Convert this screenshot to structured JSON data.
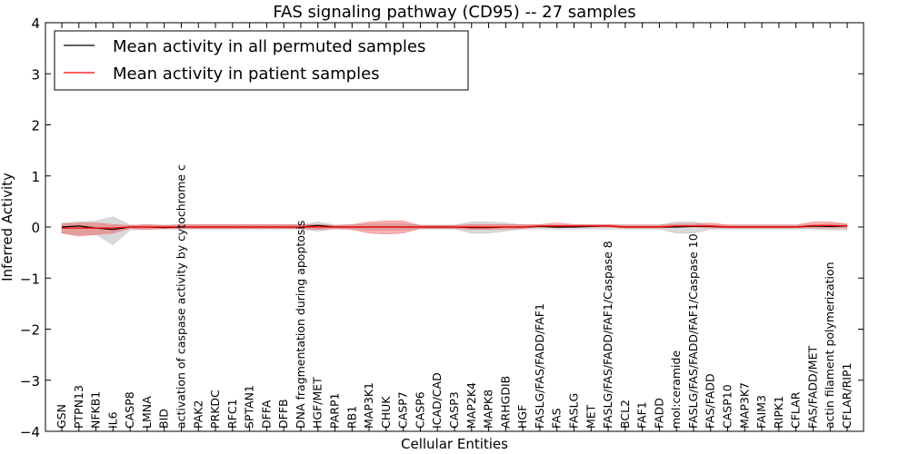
{
  "chart_data": {
    "type": "line",
    "title": "FAS signaling pathway (CD95) -- 27 samples",
    "xlabel": "Cellular Entities",
    "ylabel": "Inferred Activity",
    "ylim": [
      -4,
      4
    ],
    "yticks": [
      -4,
      -3,
      -2,
      -1,
      0,
      1,
      2,
      3,
      4
    ],
    "ytick_labels": [
      "−4",
      "−3",
      "−2",
      "−1",
      "0",
      "1",
      "2",
      "3",
      "4"
    ],
    "grid": false,
    "legend_position": "top-left",
    "categories": [
      "GSN",
      "PTPN13",
      "NFKB1",
      "IL6",
      "CASP8",
      "LMNA",
      "BID",
      "activation of caspase activity by cytochrome c",
      "PAK2",
      "PRKDC",
      "RFC1",
      "SPTAN1",
      "DFFA",
      "DFFB",
      "DNA fragmentation during apoptosis",
      "HGF/MET",
      "PARP1",
      "RB1",
      "MAP3K1",
      "CHUK",
      "CASP7",
      "CASP6",
      "ICAD/CAD",
      "CASP3",
      "MAP2K4",
      "MAPK8",
      "ARHGDIB",
      "HGF",
      "FASLG/FAS/FADD/FAF1",
      "FAS",
      "FASLG",
      "MET",
      "FASLG/FAS/FADD/FAF1/Caspase 8",
      "BCL2",
      "FAF1",
      "FADD",
      "mol:ceramide",
      "FASLG/FAS/FADD/FAF1/Caspase 10",
      "FAS/FADD",
      "CASP10",
      "MAP3K7",
      "FAIM3",
      "RIPK1",
      "CFLAR",
      "FAS/FADD/MET",
      "actin filament polymerization",
      "CFLAR/RIP1"
    ],
    "series": [
      {
        "name": "Mean activity in all permuted samples",
        "color": "#000000",
        "values": [
          0.0,
          0.02,
          -0.02,
          -0.05,
          0.0,
          0.0,
          -0.01,
          0.0,
          0.0,
          0.0,
          0.0,
          0.0,
          0.0,
          0.0,
          0.0,
          0.03,
          0.0,
          0.0,
          0.0,
          0.0,
          0.0,
          0.0,
          0.0,
          0.0,
          -0.01,
          -0.01,
          0.0,
          0.0,
          0.01,
          0.0,
          0.0,
          0.01,
          0.02,
          0.0,
          0.0,
          0.0,
          0.0,
          0.01,
          0.01,
          0.0,
          0.0,
          0.0,
          0.0,
          0.0,
          0.02,
          0.01,
          0.02
        ],
        "band_lower": [
          -0.12,
          -0.15,
          -0.15,
          -0.35,
          -0.06,
          -0.04,
          -0.04,
          -0.04,
          -0.04,
          -0.04,
          -0.04,
          -0.04,
          -0.04,
          -0.04,
          -0.04,
          -0.08,
          -0.04,
          -0.04,
          -0.06,
          -0.06,
          -0.06,
          -0.04,
          -0.04,
          -0.04,
          -0.12,
          -0.12,
          -0.08,
          -0.04,
          -0.04,
          -0.04,
          -0.04,
          -0.04,
          -0.04,
          -0.04,
          -0.04,
          -0.04,
          -0.12,
          -0.12,
          -0.04,
          -0.04,
          -0.04,
          -0.04,
          -0.04,
          -0.04,
          -0.04,
          -0.06,
          -0.06
        ],
        "band_upper": [
          0.08,
          0.1,
          0.12,
          0.2,
          0.04,
          0.04,
          0.04,
          0.04,
          0.04,
          0.04,
          0.04,
          0.04,
          0.04,
          0.04,
          0.04,
          0.1,
          0.04,
          0.04,
          0.06,
          0.06,
          0.06,
          0.04,
          0.04,
          0.04,
          0.1,
          0.1,
          0.08,
          0.04,
          0.04,
          0.04,
          0.04,
          0.04,
          0.04,
          0.04,
          0.04,
          0.04,
          0.1,
          0.1,
          0.04,
          0.04,
          0.04,
          0.04,
          0.04,
          0.04,
          0.04,
          0.06,
          0.06
        ]
      },
      {
        "name": "Mean activity in patient samples",
        "color": "#ff0000",
        "values": [
          -0.02,
          -0.02,
          -0.02,
          -0.02,
          0.0,
          0.0,
          0.0,
          0.0,
          0.0,
          0.0,
          0.0,
          0.0,
          0.0,
          0.0,
          0.0,
          0.0,
          0.0,
          0.0,
          0.0,
          0.0,
          0.0,
          0.0,
          0.0,
          0.0,
          0.0,
          0.0,
          0.0,
          0.0,
          0.02,
          0.02,
          0.02,
          0.02,
          0.02,
          0.0,
          0.0,
          0.0,
          0.02,
          0.02,
          0.02,
          0.0,
          0.0,
          0.0,
          0.0,
          0.0,
          0.03,
          0.03,
          0.02
        ],
        "band_lower": [
          -0.12,
          -0.18,
          -0.15,
          -0.12,
          -0.03,
          -0.05,
          -0.03,
          -0.03,
          -0.03,
          -0.03,
          -0.03,
          -0.03,
          -0.03,
          -0.03,
          -0.03,
          -0.05,
          -0.03,
          -0.05,
          -0.12,
          -0.14,
          -0.12,
          -0.03,
          -0.03,
          -0.03,
          -0.05,
          -0.05,
          -0.04,
          -0.03,
          0.0,
          -0.02,
          0.0,
          0.0,
          0.0,
          -0.02,
          -0.02,
          -0.02,
          0.0,
          0.0,
          -0.02,
          -0.02,
          -0.02,
          -0.02,
          -0.02,
          -0.02,
          -0.02,
          -0.02,
          -0.02
        ],
        "band_upper": [
          0.06,
          0.08,
          0.08,
          0.05,
          0.03,
          0.05,
          0.03,
          0.05,
          0.05,
          0.05,
          0.05,
          0.05,
          0.05,
          0.05,
          0.05,
          0.05,
          0.03,
          0.05,
          0.1,
          0.12,
          0.12,
          0.03,
          0.03,
          0.03,
          0.05,
          0.05,
          0.05,
          0.05,
          0.05,
          0.08,
          0.05,
          0.05,
          0.05,
          0.04,
          0.04,
          0.04,
          0.06,
          0.06,
          0.08,
          0.04,
          0.04,
          0.04,
          0.04,
          0.04,
          0.1,
          0.1,
          0.06
        ]
      }
    ],
    "band_colors": {
      "permuted": "#aaaaaa",
      "patient": "#ee5555"
    }
  }
}
